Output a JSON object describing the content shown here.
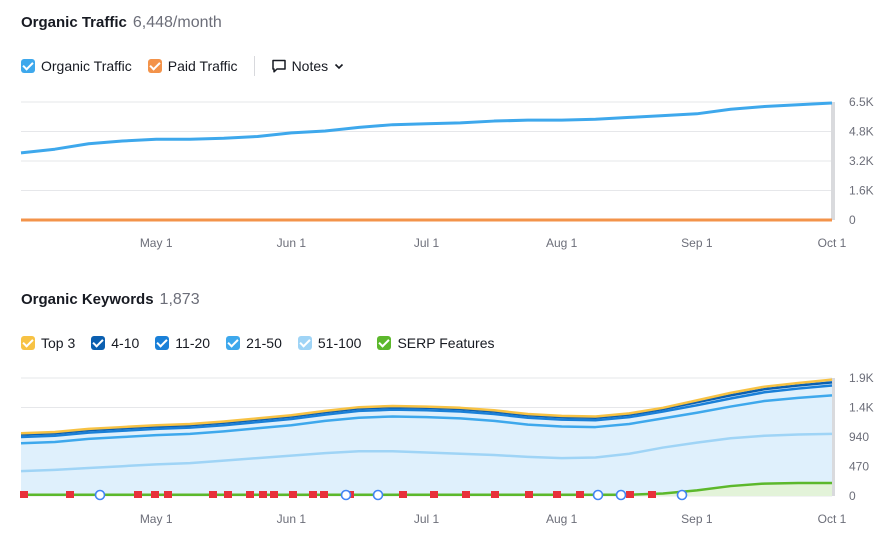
{
  "traffic": {
    "title": "Organic Traffic",
    "value": "6,448/month",
    "legend": [
      {
        "label": "Organic Traffic",
        "color": "#3ea8ec"
      },
      {
        "label": "Paid Traffic",
        "color": "#f3934a"
      }
    ],
    "notes_label": "Notes"
  },
  "keywords": {
    "title": "Organic Keywords",
    "value": "1,873",
    "legend": [
      {
        "label": "Top 3",
        "color": "#f7c244"
      },
      {
        "label": "4-10",
        "color": "#0b5fb0"
      },
      {
        "label": "11-20",
        "color": "#1a80d8"
      },
      {
        "label": "21-50",
        "color": "#3ea8ec"
      },
      {
        "label": "51-100",
        "color": "#9fd4f6"
      },
      {
        "label": "SERP Features",
        "color": "#5cb82c"
      }
    ]
  },
  "chart_data": [
    {
      "type": "line",
      "title": "Organic Traffic",
      "x_ticks": [
        "May 1",
        "Jun 1",
        "Jul 1",
        "Aug 1",
        "Sep 1",
        "Oct 1"
      ],
      "y_ticks": [
        "6.5K",
        "4.8K",
        "3.2K",
        "1.6K",
        "0"
      ],
      "ylim": [
        0,
        6500
      ],
      "x": [
        "Apr 1",
        "Apr 8",
        "Apr 15",
        "Apr 22",
        "May 1",
        "May 8",
        "May 15",
        "May 22",
        "Jun 1",
        "Jun 8",
        "Jun 15",
        "Jun 22",
        "Jul 1",
        "Jul 8",
        "Jul 15",
        "Jul 22",
        "Aug 1",
        "Aug 8",
        "Aug 15",
        "Aug 22",
        "Sep 1",
        "Sep 8",
        "Sep 15",
        "Sep 22",
        "Oct 1"
      ],
      "series": [
        {
          "name": "Organic Traffic",
          "color": "#3ea8ec",
          "values": [
            3700,
            3900,
            4200,
            4350,
            4450,
            4450,
            4500,
            4600,
            4800,
            4900,
            5100,
            5250,
            5300,
            5350,
            5450,
            5500,
            5500,
            5550,
            5650,
            5750,
            5850,
            6100,
            6250,
            6350,
            6448
          ]
        },
        {
          "name": "Paid Traffic",
          "color": "#f3934a",
          "values": [
            0,
            0,
            0,
            0,
            0,
            0,
            0,
            0,
            0,
            0,
            0,
            0,
            0,
            0,
            0,
            0,
            0,
            0,
            0,
            0,
            0,
            0,
            0,
            0,
            0
          ]
        }
      ]
    },
    {
      "type": "area",
      "title": "Organic Keywords",
      "x_ticks": [
        "May 1",
        "Jun 1",
        "Jul 1",
        "Aug 1",
        "Sep 1",
        "Oct 1"
      ],
      "y_ticks": [
        "1.9K",
        "1.4K",
        "940",
        "470",
        "0"
      ],
      "ylim": [
        0,
        1900
      ],
      "x": [
        "Apr 1",
        "Apr 8",
        "Apr 15",
        "Apr 22",
        "May 1",
        "May 8",
        "May 15",
        "May 22",
        "Jun 1",
        "Jun 8",
        "Jun 15",
        "Jun 22",
        "Jul 1",
        "Jul 8",
        "Jul 15",
        "Jul 22",
        "Aug 1",
        "Aug 8",
        "Aug 15",
        "Aug 22",
        "Sep 1",
        "Sep 8",
        "Sep 15",
        "Sep 22",
        "Oct 1"
      ],
      "series": [
        {
          "name": "Top 3",
          "color": "#f7c244",
          "values": [
            1010,
            1030,
            1080,
            1110,
            1140,
            1160,
            1200,
            1250,
            1300,
            1370,
            1430,
            1450,
            1440,
            1420,
            1380,
            1320,
            1290,
            1280,
            1330,
            1420,
            1540,
            1660,
            1760,
            1820,
            1873
          ]
        },
        {
          "name": "4-10",
          "color": "#0b5fb0",
          "values": [
            990,
            1010,
            1060,
            1090,
            1120,
            1140,
            1180,
            1230,
            1280,
            1350,
            1410,
            1430,
            1420,
            1400,
            1360,
            1300,
            1270,
            1260,
            1310,
            1400,
            1510,
            1620,
            1720,
            1780,
            1830
          ]
        },
        {
          "name": "11-20",
          "color": "#1a80d8",
          "values": [
            950,
            970,
            1020,
            1050,
            1080,
            1100,
            1140,
            1190,
            1240,
            1310,
            1370,
            1390,
            1380,
            1360,
            1320,
            1260,
            1230,
            1220,
            1270,
            1360,
            1460,
            1570,
            1670,
            1730,
            1780
          ]
        },
        {
          "name": "21-50",
          "color": "#3ea8ec",
          "values": [
            850,
            870,
            920,
            950,
            980,
            1000,
            1040,
            1090,
            1140,
            1210,
            1260,
            1280,
            1270,
            1250,
            1210,
            1150,
            1120,
            1110,
            1160,
            1250,
            1340,
            1440,
            1530,
            1580,
            1620
          ]
        },
        {
          "name": "51-100",
          "color": "#9fd4f6",
          "values": [
            400,
            420,
            450,
            480,
            510,
            530,
            570,
            610,
            650,
            690,
            720,
            720,
            700,
            680,
            660,
            630,
            610,
            620,
            680,
            780,
            860,
            930,
            970,
            990,
            1000
          ]
        },
        {
          "name": "SERP Features",
          "color": "#5cb82c",
          "values": [
            20,
            20,
            20,
            20,
            20,
            20,
            20,
            20,
            20,
            20,
            20,
            20,
            20,
            20,
            20,
            20,
            20,
            20,
            20,
            40,
            90,
            160,
            200,
            210,
            210
          ]
        }
      ]
    }
  ]
}
